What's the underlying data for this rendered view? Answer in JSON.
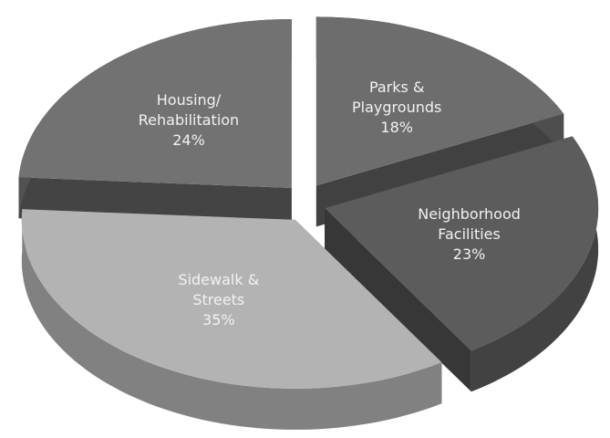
{
  "chart_data": {
    "type": "pie",
    "categories": [
      "Parks & Playgrounds",
      "Neighborhood Facilities",
      "Sidewalk & Streets",
      "Housing/ Rehabilitation"
    ],
    "values": [
      18,
      23,
      35,
      24
    ],
    "value_labels": [
      "18%",
      "23%",
      "35%",
      "24%"
    ],
    "colors": [
      "#6d6d6d",
      "#5c5c5c",
      "#b3b3b3",
      "#727272"
    ]
  }
}
